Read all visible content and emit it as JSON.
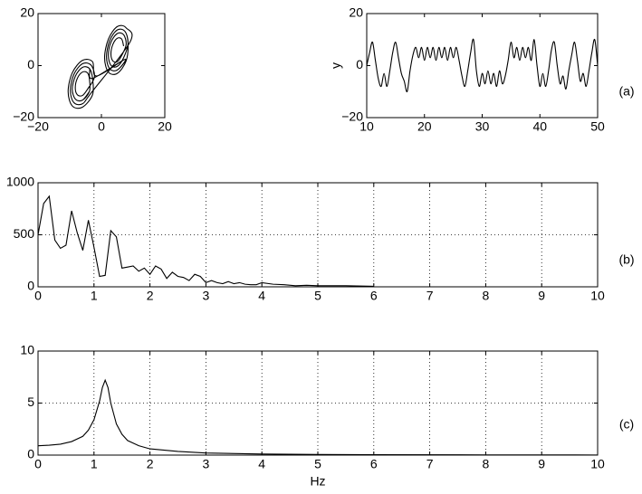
{
  "chart_data": [
    {
      "type": "line",
      "xlim": [
        -20,
        20
      ],
      "ylim": [
        -20,
        20
      ],
      "xticks": [
        {
          "value": -20,
          "label": "−20"
        },
        0,
        20
      ],
      "yticks": [
        {
          "value": -20,
          "label": "−20"
        },
        0,
        20
      ],
      "grid": false,
      "series": [
        {
          "color": "#000000",
          "x": [
            7,
            6.4,
            5,
            3.6,
            3,
            3.6,
            5,
            6.4,
            7.8,
            7,
            5,
            3,
            2.2,
            3,
            5,
            7,
            8.4,
            7.4,
            5,
            2.6,
            1.6,
            2.6,
            5,
            7.4,
            -1.5,
            -2.8,
            -6,
            -9.2,
            -10.5,
            -9.2,
            -6,
            -2.8,
            -2.8,
            -3.8,
            -6,
            -8.2,
            -9.2,
            -8.2,
            -6,
            -3.8,
            -3.75,
            -4.4,
            -6,
            -7.6,
            -8.25,
            -7.6,
            -6,
            -4.4,
            -2.2,
            -3.3,
            -6,
            -8.7,
            -9.8,
            -8.7,
            -6,
            -3.3,
            9,
            7.8,
            5,
            2.2,
            1,
            2.2,
            5,
            7.8,
            8.4,
            7.4,
            5,
            2.6,
            1.6,
            2.6,
            5,
            7.4,
            -2.8,
            -3.8,
            -6,
            -8.2,
            -9.2,
            -8.2,
            -6,
            -3.8
          ],
          "values": [
            7.5,
            10.2,
            10.5,
            8.1,
            4.5,
            1.8,
            1.5,
            3.9,
            8.1,
            11.9,
            12.3,
            9,
            3.9,
            0.1,
            -0.3,
            3,
            8.6,
            13.2,
            13.7,
            9.6,
            3.4,
            -1.2,
            -1.7,
            2.4,
            -4,
            1.5,
            2,
            -2.8,
            -10,
            -15.5,
            -16,
            -11.2,
            -4.9,
            -1.1,
            -0.7,
            -4,
            -9.1,
            -12.9,
            -13.3,
            -10,
            -5.5,
            -2.8,
            -2.5,
            -4.9,
            -8.5,
            -11.2,
            -11.5,
            -9.1,
            -4.4,
            0.2,
            0.7,
            -3.4,
            -9.6,
            -14.2,
            -14.7,
            -10.6,
            9,
            14.5,
            15,
            10.2,
            3,
            -2.5,
            -3,
            1.8,
            8.6,
            13.2,
            13.7,
            9.6,
            3.4,
            -1.2,
            -1.7,
            2.4,
            -4.9,
            -1.1,
            -0.7,
            -4,
            -9.1,
            -12.9,
            -13.3,
            -10
          ]
        }
      ]
    },
    {
      "type": "line",
      "ylabel": "y",
      "annotation": "(a)",
      "xlim": [
        10,
        50
      ],
      "ylim": [
        -20,
        20
      ],
      "xticks": [
        10,
        20,
        30,
        40,
        50
      ],
      "yticks": [
        {
          "value": -20,
          "label": "−20"
        },
        0,
        20
      ],
      "grid": false,
      "series": [
        {
          "color": "#000000",
          "x": [
            10,
            10.5,
            11,
            11.5,
            12,
            12.5,
            13,
            13.5,
            14,
            14.5,
            15,
            15.5,
            16,
            16.5,
            17,
            17.5,
            18,
            18.5,
            19,
            19.5,
            20,
            20.5,
            21,
            21.5,
            22,
            22.5,
            23,
            23.5,
            24,
            24.5,
            25,
            25.5,
            26,
            26.5,
            27,
            27.5,
            28,
            28.5,
            29,
            29.5,
            30,
            30.5,
            31,
            31.5,
            32,
            32.5,
            33,
            33.5,
            34,
            34.5,
            35,
            35.5,
            36,
            36.5,
            37,
            37.5,
            38,
            38.5,
            39,
            39.5,
            40,
            40.5,
            41,
            41.5,
            42,
            42.5,
            43,
            43.5,
            44,
            44.5,
            45,
            45.5,
            46,
            46.5,
            47,
            47.5,
            48,
            48.5,
            49,
            49.5,
            50
          ],
          "values": [
            0,
            5,
            9,
            2,
            -5,
            -8,
            -3,
            -8,
            -2,
            5,
            9,
            3,
            -3,
            -6,
            -10,
            -2,
            4,
            7,
            3,
            7,
            2,
            7,
            3,
            7,
            2,
            7,
            3,
            7,
            2,
            7,
            3,
            7,
            2,
            -4,
            -8,
            -2,
            5,
            10,
            -2,
            -8,
            -3,
            -7,
            -2,
            -7,
            -3,
            -8,
            -2,
            -7,
            -4,
            2,
            9,
            3,
            7,
            2,
            7,
            3,
            7,
            2,
            10,
            0,
            -8,
            -3,
            -8,
            -2,
            6,
            9,
            0,
            -7,
            -4,
            -9,
            -2,
            4,
            9,
            2,
            -6,
            -3,
            -8,
            -2,
            5,
            10,
            0
          ]
        }
      ]
    },
    {
      "type": "line",
      "annotation": "(b)",
      "xlim": [
        0,
        10
      ],
      "ylim": [
        0,
        1000
      ],
      "xticks": [
        0,
        1,
        2,
        3,
        4,
        5,
        6,
        7,
        8,
        9,
        10
      ],
      "yticks": [
        0,
        500,
        1000
      ],
      "grid": true,
      "series": [
        {
          "color": "#000000",
          "x": [
            0,
            0.1,
            0.2,
            0.3,
            0.4,
            0.5,
            0.6,
            0.7,
            0.8,
            0.9,
            1.0,
            1.1,
            1.2,
            1.3,
            1.4,
            1.5,
            1.6,
            1.7,
            1.8,
            1.9,
            2.0,
            2.1,
            2.2,
            2.3,
            2.4,
            2.5,
            2.6,
            2.7,
            2.8,
            2.9,
            3.0,
            3.1,
            3.2,
            3.3,
            3.4,
            3.5,
            3.6,
            3.7,
            3.8,
            3.9,
            4.0,
            4.2,
            4.4,
            4.6,
            4.8,
            5.0,
            5.5,
            6.0
          ],
          "values": [
            500,
            800,
            870,
            450,
            370,
            400,
            730,
            520,
            350,
            640,
            380,
            100,
            110,
            540,
            480,
            180,
            190,
            200,
            150,
            180,
            120,
            200,
            170,
            80,
            140,
            100,
            90,
            60,
            120,
            100,
            40,
            60,
            40,
            30,
            50,
            30,
            40,
            25,
            20,
            20,
            40,
            25,
            20,
            10,
            15,
            10,
            10,
            5
          ]
        }
      ]
    },
    {
      "type": "line",
      "xlabel": "Hz",
      "annotation": "(c)",
      "xlim": [
        0,
        10
      ],
      "ylim": [
        0,
        10
      ],
      "xticks": [
        0,
        1,
        2,
        3,
        4,
        5,
        6,
        7,
        8,
        9,
        10
      ],
      "yticks": [
        0,
        5,
        10
      ],
      "grid": true,
      "series": [
        {
          "color": "#000000",
          "x": [
            0,
            0.2,
            0.4,
            0.6,
            0.8,
            0.9,
            1.0,
            1.1,
            1.15,
            1.2,
            1.25,
            1.3,
            1.4,
            1.5,
            1.6,
            1.8,
            2.0,
            2.5,
            3,
            4,
            5,
            6,
            8,
            10
          ],
          "values": [
            0.9,
            0.95,
            1.05,
            1.3,
            1.8,
            2.4,
            3.4,
            5.2,
            6.5,
            7.2,
            6.5,
            5.0,
            3.0,
            2.0,
            1.4,
            0.9,
            0.6,
            0.35,
            0.2,
            0.1,
            0.06,
            0.04,
            0.02,
            0.01
          ]
        }
      ]
    }
  ]
}
